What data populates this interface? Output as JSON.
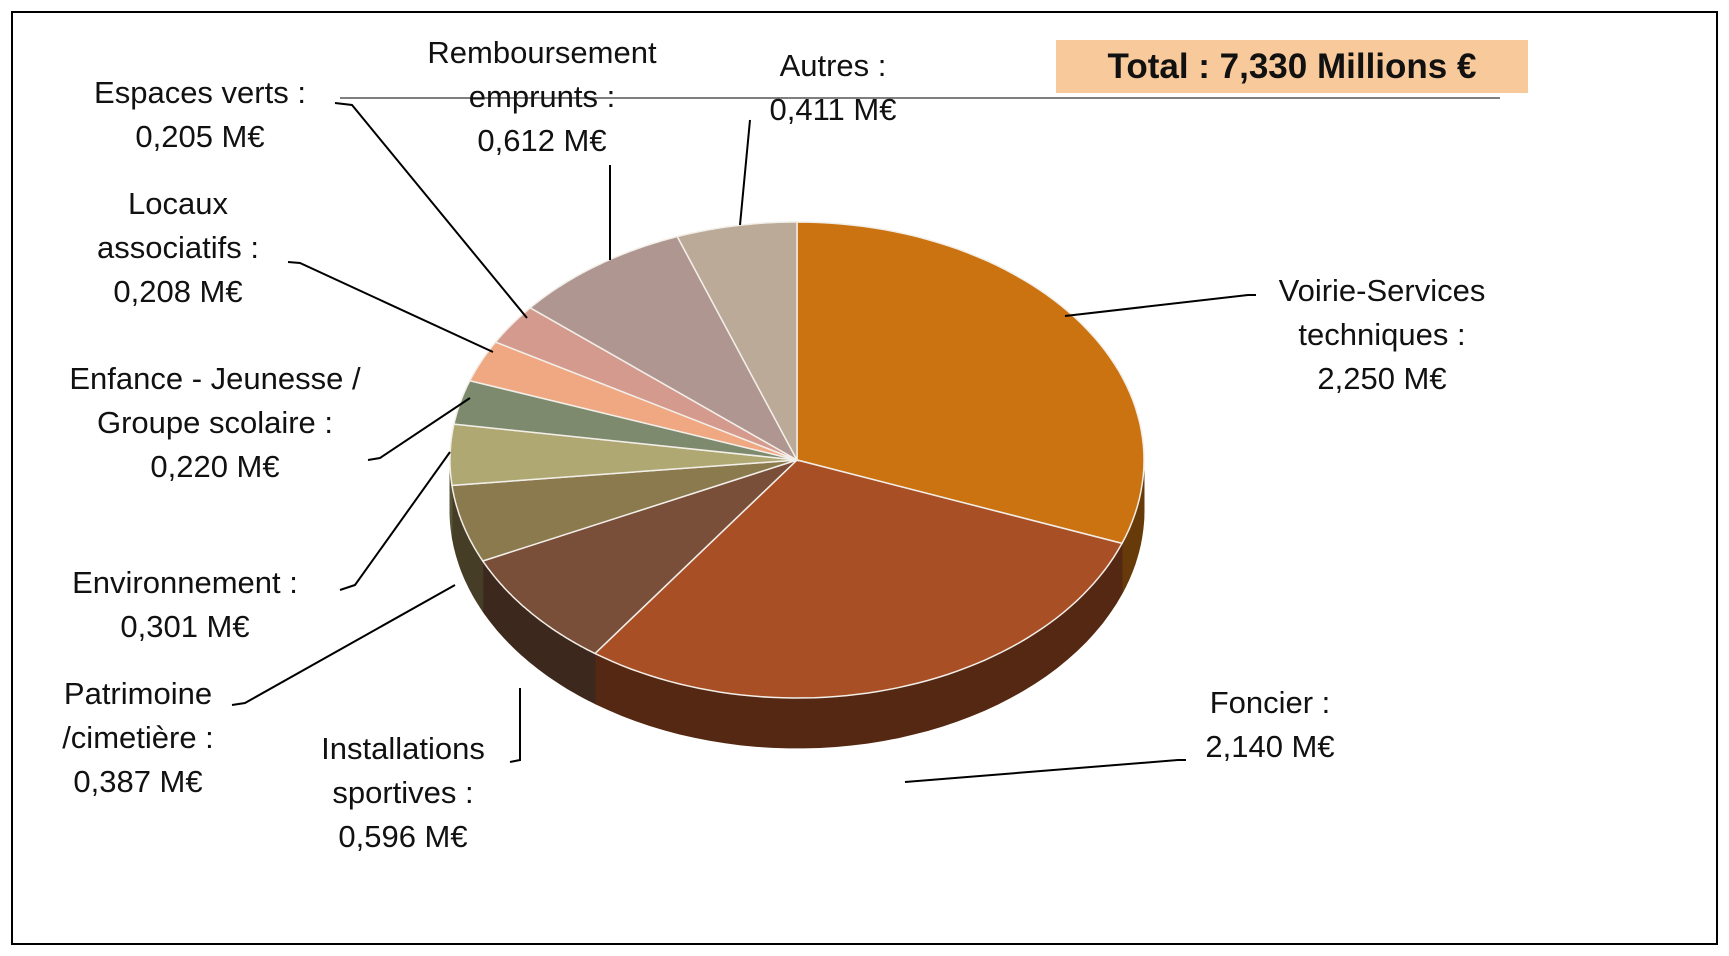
{
  "chart_data": {
    "type": "pie",
    "title": "Total : 7,330 Millions €",
    "categories": [
      "Voirie-Services techniques :",
      "Foncier :",
      "Installations sportives :",
      "Patrimoine /cimetière :",
      "Environnement :",
      "Enfance - Jeunesse / Groupe scolaire :",
      "Locaux associatifs :",
      "Espaces verts :",
      "Remboursement emprunts :",
      "Autres :"
    ],
    "values": [
      2.25,
      2.14,
      0.596,
      0.387,
      0.301,
      0.22,
      0.208,
      0.205,
      0.612,
      0.411
    ],
    "value_labels": [
      "2,250 M€",
      "2,140 M€",
      "0,596 M€",
      "0,387 M€",
      "0,301 M€",
      "0,220 M€",
      "0,208 M€",
      "0,205 M€",
      "0,612 M€",
      "0,411 M€"
    ],
    "colors": [
      "#cc7311",
      "#a94f25",
      "#7a4f3a",
      "#8b7a4e",
      "#b0a872",
      "#7e8a6e",
      "#f0a882",
      "#d49a8e",
      "#b09690",
      "#bbaa98"
    ]
  }
}
